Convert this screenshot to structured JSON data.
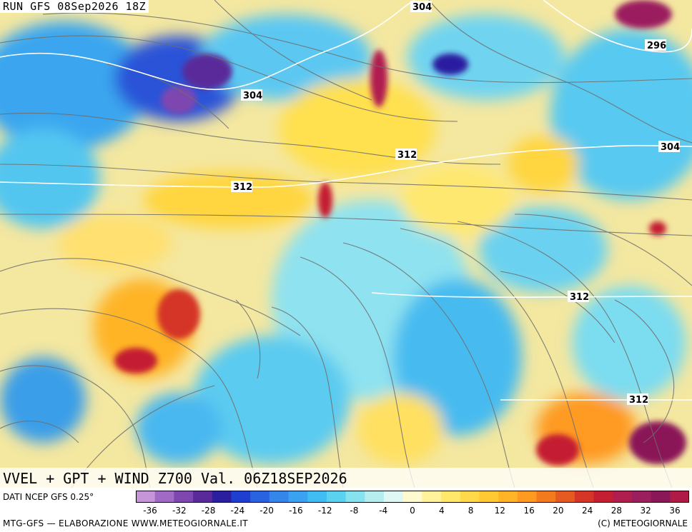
{
  "header": {
    "run_label": "RUN GFS 08Sep2026 18Z"
  },
  "product": {
    "title": "VVEL + GPT + WIND Z700 Val. 06Z18SEP2026"
  },
  "footer": {
    "source": "DATI NCEP GFS 0.25°",
    "credit": "MTG-GFS — ELABORAZIONE WWW.METEOGIORNALE.IT",
    "copyright": "(C) METEOGIORNALE"
  },
  "contour_labels": [
    "304",
    "296",
    "304",
    "312",
    "312",
    "304",
    "312",
    "312"
  ],
  "color_scale": {
    "ticks": [
      "-36",
      "-32",
      "-28",
      "-24",
      "-20",
      "-16",
      "-12",
      "-8",
      "-4",
      "0",
      "4",
      "8",
      "12",
      "16",
      "20",
      "24",
      "28",
      "32",
      "36"
    ],
    "colors": [
      "#c695d8",
      "#a06ac5",
      "#7e47b0",
      "#5a2a9a",
      "#2b1fa0",
      "#1f3fd0",
      "#2a63e0",
      "#3586ea",
      "#3aa2f0",
      "#40bdf2",
      "#5ad2ef",
      "#86e2ef",
      "#b6eef0",
      "#dff8f5",
      "#fffbd0",
      "#fff29a",
      "#ffe86a",
      "#ffd94a",
      "#ffc934",
      "#ffb428",
      "#ff9a20",
      "#f47a1e",
      "#e55a20",
      "#d43526",
      "#c41e33",
      "#b01e50",
      "#9b1e5e",
      "#8a1858",
      "#b01a48"
    ]
  }
}
